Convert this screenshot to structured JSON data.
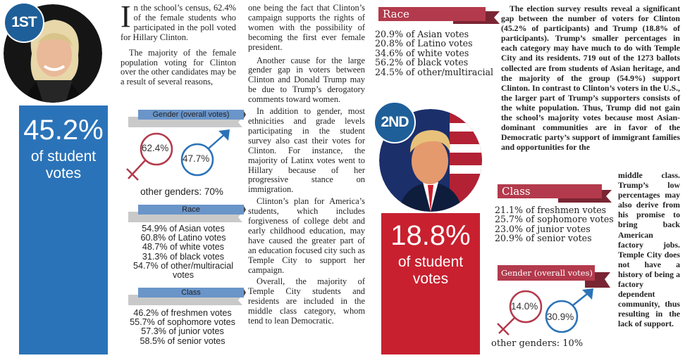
{
  "clinton": {
    "rank": "1ST",
    "percent": "45.2%",
    "label_line1": "of student",
    "label_line2": "votes"
  },
  "trump": {
    "rank": "2ND",
    "percent": "18.8%",
    "label_line1": "of student",
    "label_line2": "votes"
  },
  "article_col1": {
    "dropcap": "I",
    "p1": "n the school’s census, 62.4% of the female students who participated in the poll voted for Hillary Clinton.",
    "p2": "The majority of the female population voting for Clinton over the other candidates may be a result of several reasons,"
  },
  "article_col2": {
    "p1": "one being the fact that Clinton’s campaign supports the rights of women with the possibility of becoming the first ever female president.",
    "p2": "Another cause for the large gender gap in voters between Clinton and Donald Trump may be due to Trump’s derogatory comments toward women.",
    "p3": "In addition to gender, most ethnicities and grade levels participating in the student survey also cast their votes for Clinton. For instance, the majority of Latinx votes went to Hillary because of her progressive stance on immigration.",
    "p4": "Clinton’s plan for America’s students, which includes forgiveness of college debt and early childhood education, may have caused the greater part of an education focused city such as Temple City to support her campaign.",
    "p5": "Overall, the majority of Temple City students and residents are included in the middle class category, whom tend to lean Democratic."
  },
  "article_col4": {
    "p1": "The election survey results reveal a significant gap between the number of voters for Clinton (45.2% of participants) and Trump (18.8% of participants). Trump’s smaller percentages in each category may have much to do with Temple City and its residents. 719 out of the 1273 ballots collected are from students of Asian heritage, and the majority of the group (54.9%) support Clinton. In contrast to Clinton’s voters in the U.S., the larger part of Trump’s supporters consists of the white population. Thus, Trump did not gain the school’s majority votes because most Asian-dominant communities are in favor of the Democratic party’s support of immigrant families and opportunities for the",
    "p1_tail": "middle class. Trump’s low percentages may also derive from his promise to bring back American factory jobs. Temple City does not have a history of being a factory dependent community, thus resulting in the lack of support."
  },
  "clinton_stats": {
    "gender_title": "Gender (overall votes)",
    "female_pct": "62.4%",
    "male_pct": "47.7%",
    "other_genders": "other genders: 70%",
    "race_title": "Race",
    "race": [
      "54.9% of Asian votes",
      "60.8% of Latino votes",
      "48.7% of white votes",
      "31.3% of black votes",
      "54.7% of other/multiracial",
      "votes"
    ],
    "class_title": "Class",
    "class": [
      "46.2% of freshmen votes",
      "55.7% of sophomore votes",
      "57.3% of junior votes",
      "58.5% of senior votes"
    ]
  },
  "trump_stats": {
    "race_title": "Race",
    "race": [
      "20.9% of Asian votes",
      "20.8% of Latino votes",
      "34.6% of white votes",
      "56.2% of black votes",
      "24.5% of other/multiracial"
    ],
    "class_title": "Class",
    "class": [
      "21.1% of freshmen votes",
      "25.7% of sophomore votes",
      "23.0% of junior votes",
      "20.9% of senior votes"
    ],
    "gender_title": "Gender (overall votes)",
    "female_pct": "14.0%",
    "male_pct": "30.9%",
    "other_genders": "other genders: 10%"
  },
  "colors": {
    "clinton_blue": "#2b73b8",
    "badge_blue": "#1e5f99",
    "trump_red": "#c8202f",
    "ribbon_red": "#b33a4c",
    "ribbon_blue": "#6a95c9",
    "female_red": "#b33a4c",
    "male_blue": "#2b73b8"
  }
}
